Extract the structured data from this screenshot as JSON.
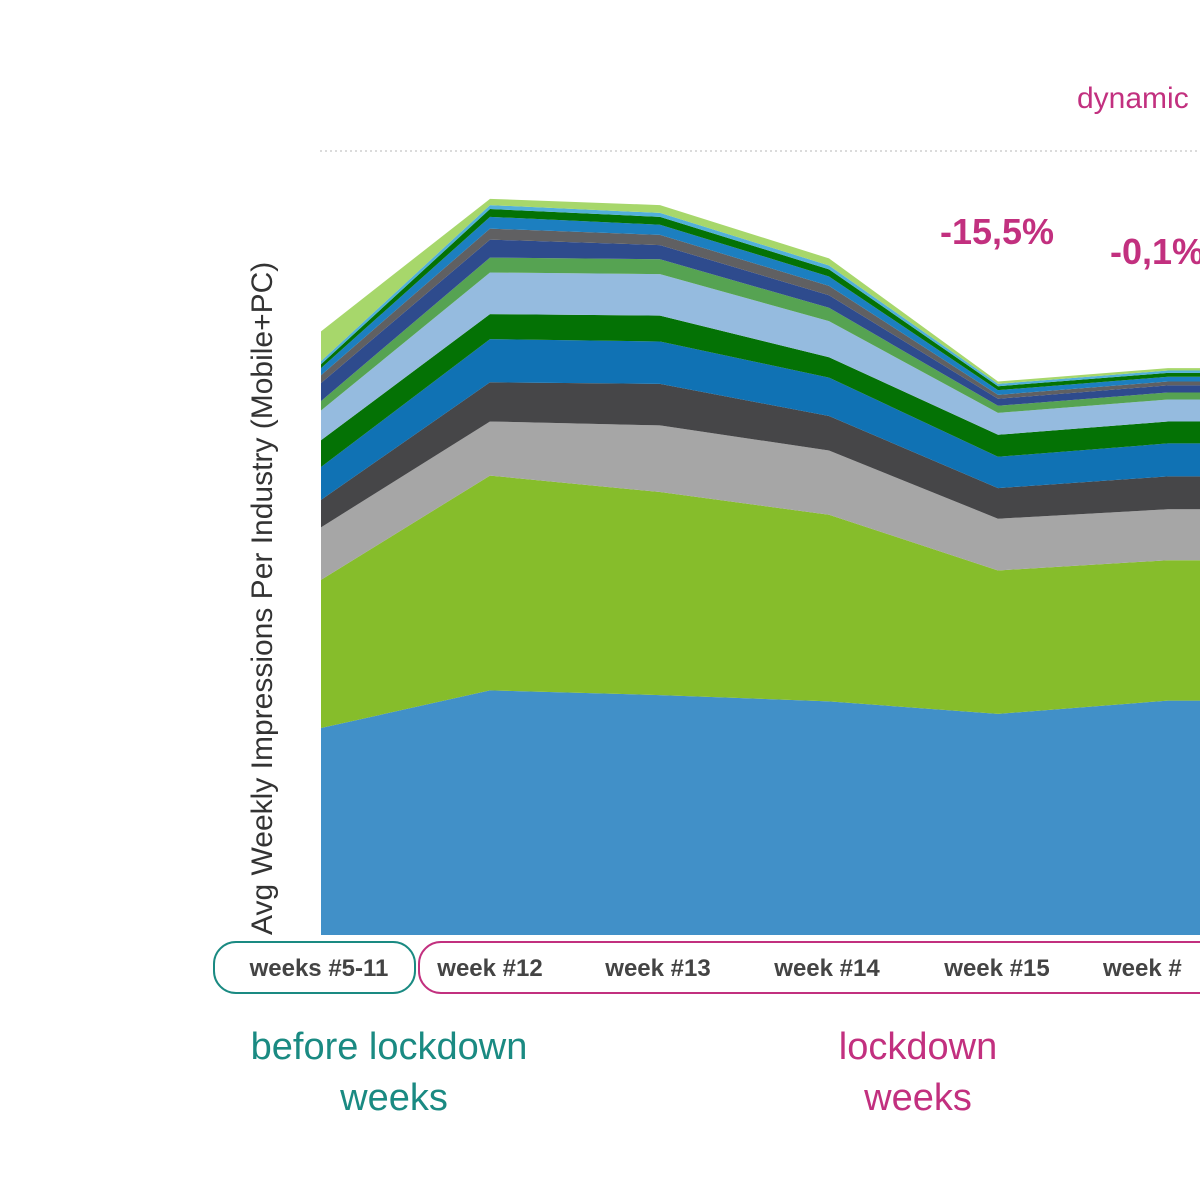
{
  "chart_data": {
    "type": "area",
    "stacked": true,
    "title": "",
    "ylabel": "Avg Weekly Impressions Per Industry (Mobile+PC)",
    "ylim": [
      0,
      100
    ],
    "grid": false,
    "categories": [
      "weeks #5-11",
      "week #12",
      "week #13",
      "week #14",
      "week #15",
      "week #"
    ],
    "series": [
      {
        "color": "#4190c8",
        "values": [
          26.4,
          31.2,
          30.6,
          29.8,
          28.2,
          29.9
        ]
      },
      {
        "color": "#86bd2b",
        "values": [
          18.9,
          27.4,
          25.9,
          23.8,
          18.3,
          17.9
        ]
      },
      {
        "color": "#a6a6a6",
        "values": [
          6.7,
          6.9,
          8.5,
          8.2,
          6.6,
          6.5
        ]
      },
      {
        "color": "#464648",
        "values": [
          3.5,
          5.0,
          5.3,
          4.4,
          3.9,
          4.2
        ]
      },
      {
        "color": "#1072b4",
        "values": [
          4.2,
          5.5,
          5.4,
          4.9,
          4.0,
          4.2
        ]
      },
      {
        "color": "#047205",
        "values": [
          3.4,
          3.2,
          3.3,
          2.6,
          2.8,
          2.8
        ]
      },
      {
        "color": "#95bbdf",
        "values": [
          3.8,
          5.3,
          5.3,
          4.6,
          2.8,
          2.8
        ]
      },
      {
        "color": "#56a352",
        "values": [
          1.2,
          1.9,
          1.9,
          1.7,
          0.9,
          0.9
        ]
      },
      {
        "color": "#2e4b8d",
        "values": [
          2.3,
          2.3,
          1.8,
          1.6,
          0.9,
          0.9
        ]
      },
      {
        "color": "#606062",
        "values": [
          1.0,
          1.4,
          1.3,
          1.2,
          0.5,
          0.5
        ]
      },
      {
        "color": "#1c7fc0",
        "values": [
          0.9,
          1.5,
          1.3,
          1.2,
          0.6,
          0.6
        ]
      },
      {
        "color": "#047205",
        "values": [
          0.5,
          1.0,
          1.0,
          0.9,
          0.5,
          0.5
        ]
      },
      {
        "color": "#52b0da",
        "values": [
          0.4,
          0.5,
          0.5,
          0.5,
          0.3,
          0.3
        ]
      },
      {
        "color": "#a7d76b",
        "values": [
          3.8,
          0.8,
          1.0,
          0.9,
          0.3,
          0.3
        ]
      }
    ],
    "annotations": [
      {
        "text": "-15,5%",
        "between": [
          "week #14",
          "week #15"
        ]
      },
      {
        "text": "-0,1%",
        "between": [
          "week #15",
          "week #"
        ]
      }
    ],
    "legend_text_partial": "dynamic",
    "groups": [
      {
        "label_line1": "before lockdown",
        "label_line2": "weeks",
        "color": "#1a8a82",
        "categories": [
          "weeks #5-11"
        ]
      },
      {
        "label_line1": "lockdown",
        "label_line2": "weeks",
        "color": "#c2307f",
        "categories": [
          "week #12",
          "week #13",
          "week #14",
          "week #15",
          "week #"
        ]
      }
    ]
  }
}
